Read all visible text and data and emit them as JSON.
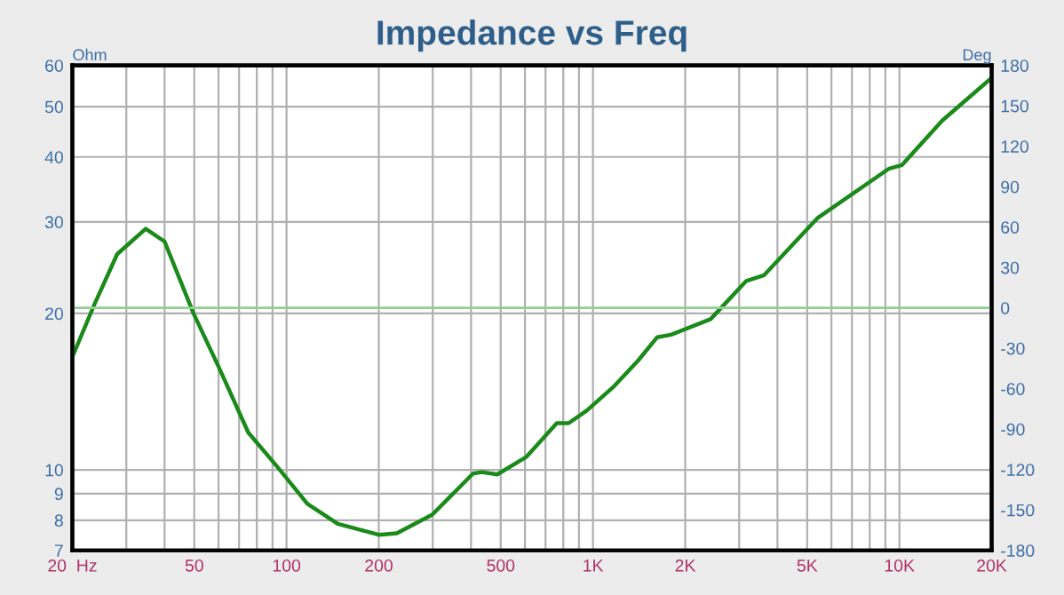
{
  "chart_data": {
    "type": "line",
    "title": "Impedance vs Freq",
    "ylabel": "Ohm",
    "y2label": "Deg",
    "log": "xy",
    "grid": true,
    "legend": false,
    "marker": "none",
    "line_style": "solid",
    "series": [
      {
        "color": "#1a8a1a",
        "x": [
          20,
          23.6,
          28,
          34.7,
          40,
          49.7,
          60,
          75,
          93.8,
          117,
          147,
          200,
          229,
          299,
          406,
          434,
          487,
          607,
          762,
          833,
          954,
          1160,
          1400,
          1621,
          1800,
          2420,
          3166,
          3620,
          5400,
          9260,
          10200,
          13800,
          20000
        ],
        "values": [
          16.5,
          20.8,
          26,
          29.1,
          27.5,
          20.0,
          15.8,
          11.8,
          10.1,
          8.6,
          7.87,
          7.5,
          7.55,
          8.2,
          9.84,
          9.9,
          9.8,
          10.6,
          12.3,
          12.3,
          13.0,
          14.4,
          16.2,
          18.0,
          18.2,
          19.5,
          23.1,
          23.7,
          30.5,
          38.0,
          38.6,
          47,
          56.8
        ]
      }
    ],
    "xlim": [
      20,
      20000
    ],
    "xticks": [
      {
        "value": 20,
        "label": "20  Hz"
      },
      {
        "value": 30,
        "label": null
      },
      {
        "value": 40,
        "label": null
      },
      50,
      {
        "value": 60,
        "label": null
      },
      {
        "value": 70,
        "label": null
      },
      {
        "value": 80,
        "label": null
      },
      {
        "value": 90,
        "label": null
      },
      100,
      200,
      {
        "value": 300,
        "label": null
      },
      {
        "value": 400,
        "label": null
      },
      500,
      {
        "value": 600,
        "label": null
      },
      {
        "value": 700,
        "label": null
      },
      {
        "value": 800,
        "label": null
      },
      {
        "value": 900,
        "label": null
      },
      {
        "value": 1000,
        "label": "1K"
      },
      {
        "value": 2000,
        "label": "2K"
      },
      {
        "value": 3000,
        "label": null
      },
      {
        "value": 4000,
        "label": null
      },
      {
        "value": 5000,
        "label": "5K"
      },
      {
        "value": 6000,
        "label": null
      },
      {
        "value": 7000,
        "label": null
      },
      {
        "value": 8000,
        "label": null
      },
      {
        "value": 9000,
        "label": null
      },
      {
        "value": 10000,
        "label": "10K"
      },
      {
        "value": 20000,
        "label": "20K"
      }
    ],
    "ylim": [
      7,
      60
    ],
    "yticks": [
      7,
      8,
      9,
      10,
      20,
      30,
      40,
      50,
      60
    ],
    "y2lim": [
      -180,
      180
    ],
    "y2ticks": [
      -180,
      -150,
      -120,
      -90,
      -60,
      -30,
      0,
      30,
      60,
      90,
      120,
      150,
      180
    ],
    "ref_lines": [
      {
        "axis": "y2",
        "value": 0,
        "color": "#90d090"
      }
    ]
  }
}
